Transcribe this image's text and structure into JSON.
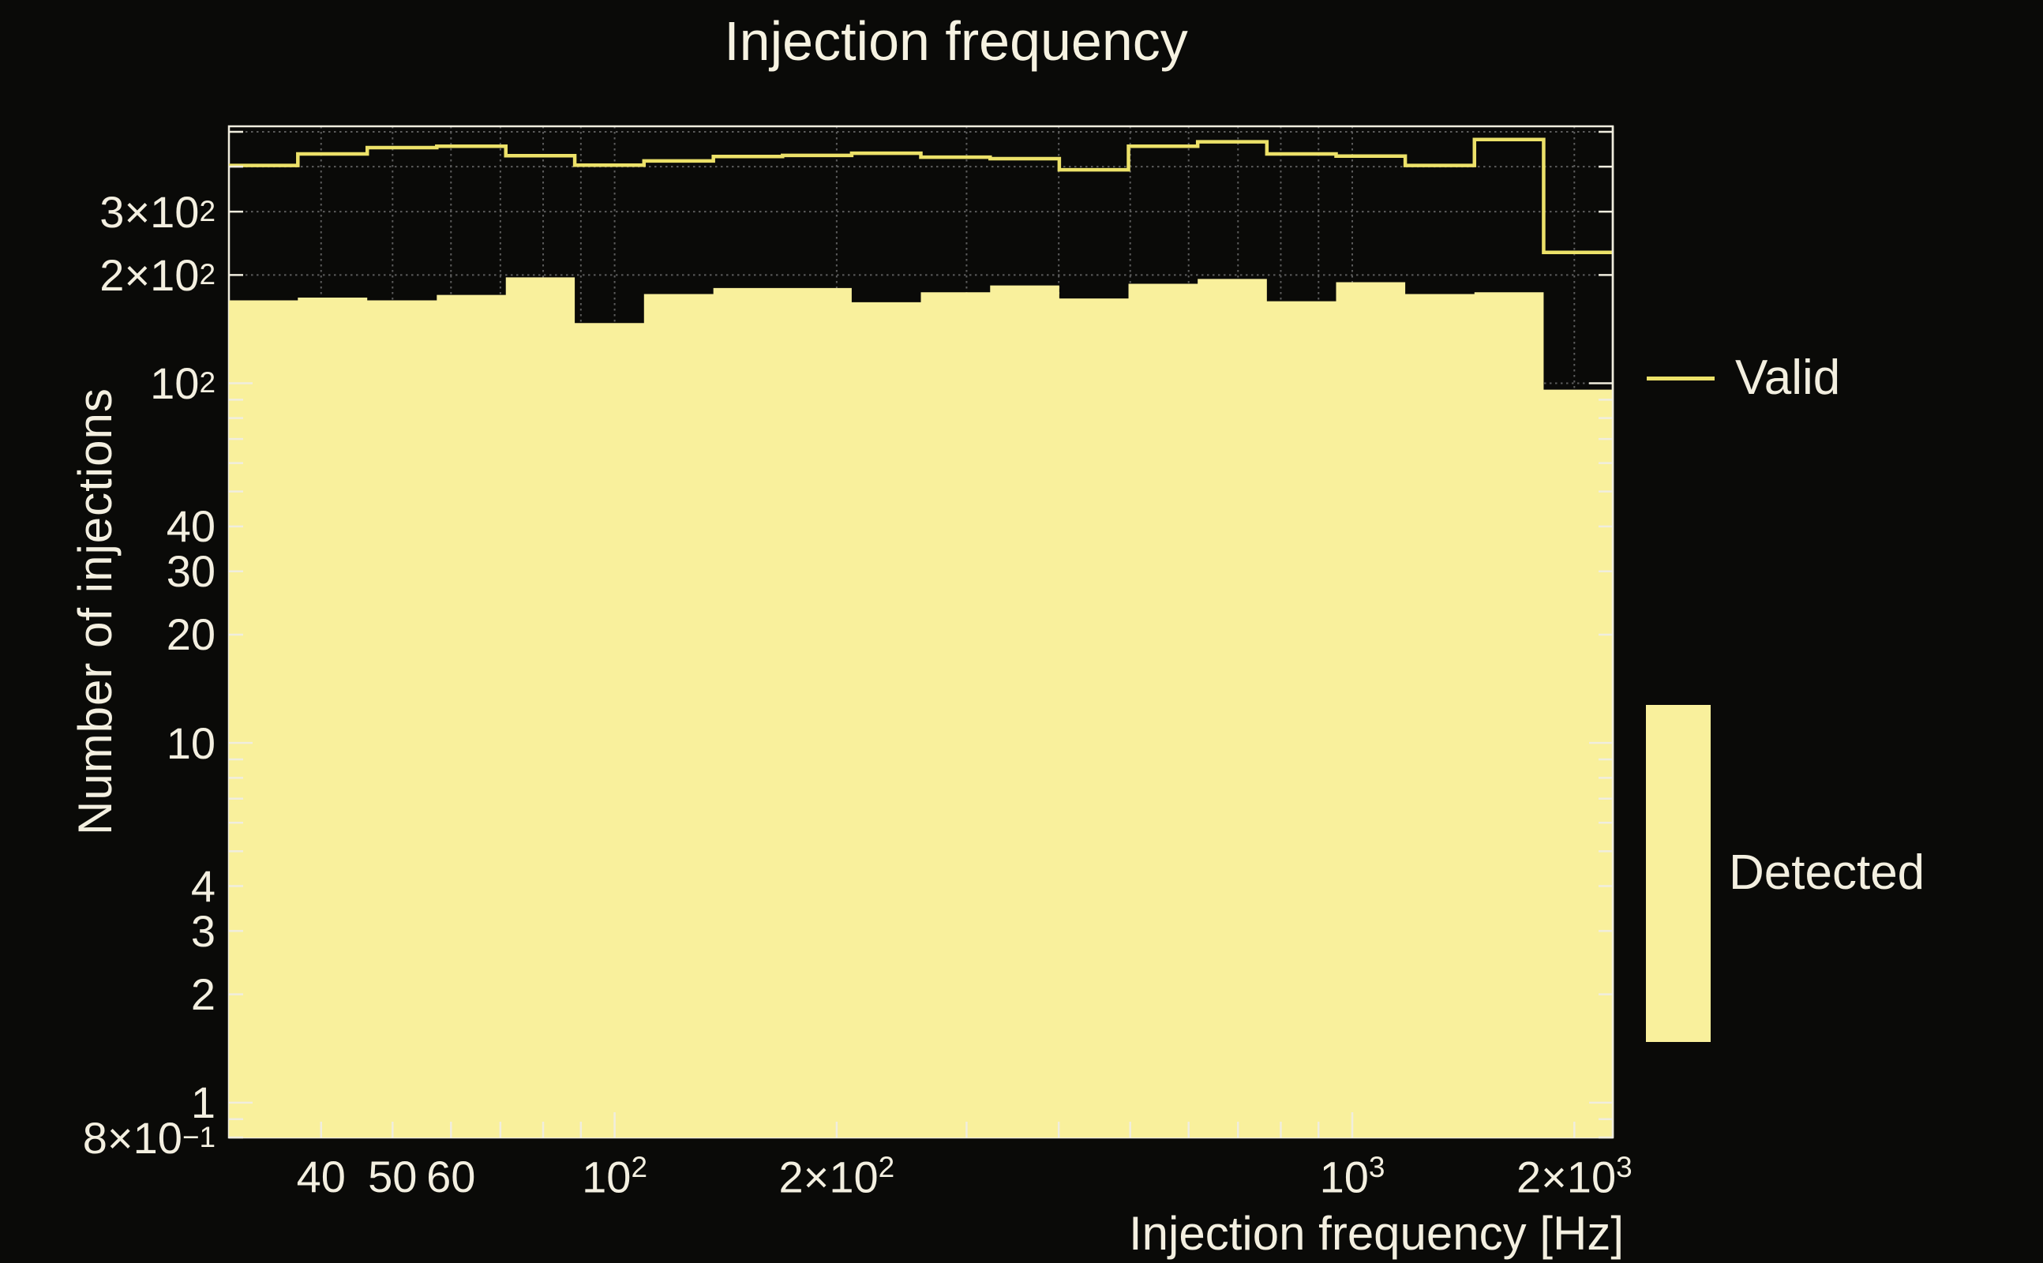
{
  "title": "Injection frequency",
  "chart_data": {
    "type": "step-histogram",
    "title": "Injection frequency",
    "xlabel": "Injection frequency [Hz]",
    "ylabel": "Number of injections",
    "xscale": "log",
    "yscale": "log",
    "xlim": [
      30,
      2255
    ],
    "ylim": [
      0.8,
      518
    ],
    "grid": "dotted-minor-and-major",
    "legend_position": "right",
    "bin_edges_hz": [
      30,
      37.2,
      46.2,
      57.4,
      71.2,
      88.3,
      109.6,
      136.1,
      168.9,
      209.6,
      260.1,
      322.9,
      400.7,
      497.3,
      617.2,
      766.0,
      950.7,
      1179.8,
      1464.3,
      1817.3,
      2255
    ],
    "series": [
      {
        "name": "Valid",
        "style": "line",
        "color": "#ece169",
        "values": [
          403,
          434,
          452,
          456,
          429,
          404,
          415,
          427,
          430,
          436,
          425,
          421,
          392,
          456,
          469,
          434,
          428,
          403,
          476,
          231
        ]
      },
      {
        "name": "Detected",
        "style": "filled",
        "color": "#f9f09c",
        "values": [
          170,
          173,
          170,
          176,
          197,
          147,
          177,
          184,
          184,
          168,
          179,
          187,
          172,
          189,
          195,
          169,
          191,
          177,
          179,
          96
        ]
      }
    ],
    "x_ticks": [
      {
        "v": 40,
        "base": "40",
        "sup": ""
      },
      {
        "v": 50,
        "base": "50",
        "sup": ""
      },
      {
        "v": 60,
        "base": "60",
        "sup": ""
      },
      {
        "v": 100,
        "base": "10",
        "sup": "2"
      },
      {
        "v": 200,
        "base": "2×10",
        "sup": "2"
      },
      {
        "v": 1000,
        "base": "10",
        "sup": "3"
      },
      {
        "v": 2000,
        "base": "2×10",
        "sup": "3"
      }
    ],
    "y_ticks": [
      {
        "v": 300,
        "base": "3×10",
        "sup": "2"
      },
      {
        "v": 200,
        "base": "2×10",
        "sup": "2"
      },
      {
        "v": 100,
        "base": "10",
        "sup": "2"
      },
      {
        "v": 40,
        "base": "40",
        "sup": ""
      },
      {
        "v": 30,
        "base": "30",
        "sup": ""
      },
      {
        "v": 20,
        "base": "20",
        "sup": ""
      },
      {
        "v": 10,
        "base": "10",
        "sup": ""
      },
      {
        "v": 4,
        "base": "4",
        "sup": ""
      },
      {
        "v": 3,
        "base": "3",
        "sup": ""
      },
      {
        "v": 2,
        "base": "2",
        "sup": ""
      },
      {
        "v": 1,
        "base": "1",
        "sup": ""
      },
      {
        "v": 0.8,
        "base": "8×10",
        "sup": "−1"
      }
    ],
    "x_gridlines": [
      40,
      50,
      60,
      70,
      80,
      90,
      100,
      200,
      300,
      400,
      500,
      600,
      700,
      800,
      900,
      1000,
      2000
    ],
    "y_gridlines": [
      0.9,
      1,
      2,
      3,
      4,
      5,
      6,
      7,
      8,
      9,
      10,
      20,
      30,
      40,
      50,
      60,
      70,
      80,
      90,
      100,
      200,
      300,
      400,
      500
    ],
    "x_major": [
      100,
      1000
    ],
    "y_major": [
      1,
      10,
      100
    ]
  },
  "legend": {
    "valid_label": "Valid",
    "detected_label": "Detected"
  },
  "colors": {
    "background": "#0a0a08",
    "frame": "#f0edde",
    "text": "#f3efe0",
    "detected_fill": "#f9f09c",
    "valid_line": "#ece169",
    "gridline": "#5c5c5c"
  }
}
